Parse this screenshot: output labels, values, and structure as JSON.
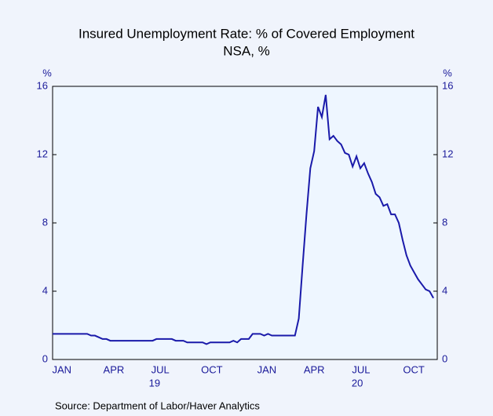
{
  "chart_data": {
    "type": "line",
    "title": "Insured Unemployment Rate: % of Covered Employment",
    "subtitle": "NSA, %",
    "y_label_left": "%",
    "y_label_right": "%",
    "source": "Source:  Department of Labor/Haver Analytics",
    "color": "#1a1aaa",
    "series": [
      {
        "name": "Insured Unemployment Rate",
        "color": "#1a1aaa",
        "values": [
          1.5,
          1.5,
          1.5,
          1.5,
          1.5,
          1.5,
          1.5,
          1.5,
          1.5,
          1.5,
          1.4,
          1.4,
          1.3,
          1.2,
          1.2,
          1.1,
          1.1,
          1.1,
          1.1,
          1.1,
          1.1,
          1.1,
          1.1,
          1.1,
          1.1,
          1.1,
          1.1,
          1.2,
          1.2,
          1.2,
          1.2,
          1.2,
          1.1,
          1.1,
          1.1,
          1.0,
          1.0,
          1.0,
          1.0,
          1.0,
          0.9,
          1.0,
          1.0,
          1.0,
          1.0,
          1.0,
          1.0,
          1.1,
          1.0,
          1.2,
          1.2,
          1.2,
          1.5,
          1.5,
          1.5,
          1.4,
          1.5,
          1.4,
          1.4,
          1.4,
          1.4,
          1.4,
          1.4,
          1.4,
          2.4,
          5.5,
          8.5,
          11.2,
          12.2,
          14.8,
          14.2,
          15.5,
          12.9,
          13.1,
          12.8,
          12.6,
          12.1,
          12.0,
          11.3,
          11.9,
          11.2,
          11.5,
          10.9,
          10.4,
          9.7,
          9.5,
          9.0,
          9.1,
          8.5,
          8.5,
          8.0,
          7.0,
          6.1,
          5.5,
          5.1,
          4.7,
          4.4,
          4.1,
          4.0,
          3.6
        ]
      }
    ],
    "xlim": [
      0,
      100
    ],
    "xticks": [
      {
        "value": 2.4,
        "label": "JAN"
      },
      {
        "value": 15.9,
        "label": "APR"
      },
      {
        "value": 28,
        "label": "JUL"
      },
      {
        "value": 41.4,
        "label": "OCT"
      },
      {
        "value": 55.7,
        "label": "JAN"
      },
      {
        "value": 68,
        "label": "APR"
      },
      {
        "value": 80.2,
        "label": "JUL"
      },
      {
        "value": 93.9,
        "label": "OCT"
      }
    ],
    "year_labels": [
      {
        "value": 26.5,
        "label": "19"
      },
      {
        "value": 79.2,
        "label": "20"
      }
    ],
    "ylim": [
      0,
      16
    ],
    "yticks": [
      0,
      4,
      8,
      12,
      16
    ]
  }
}
